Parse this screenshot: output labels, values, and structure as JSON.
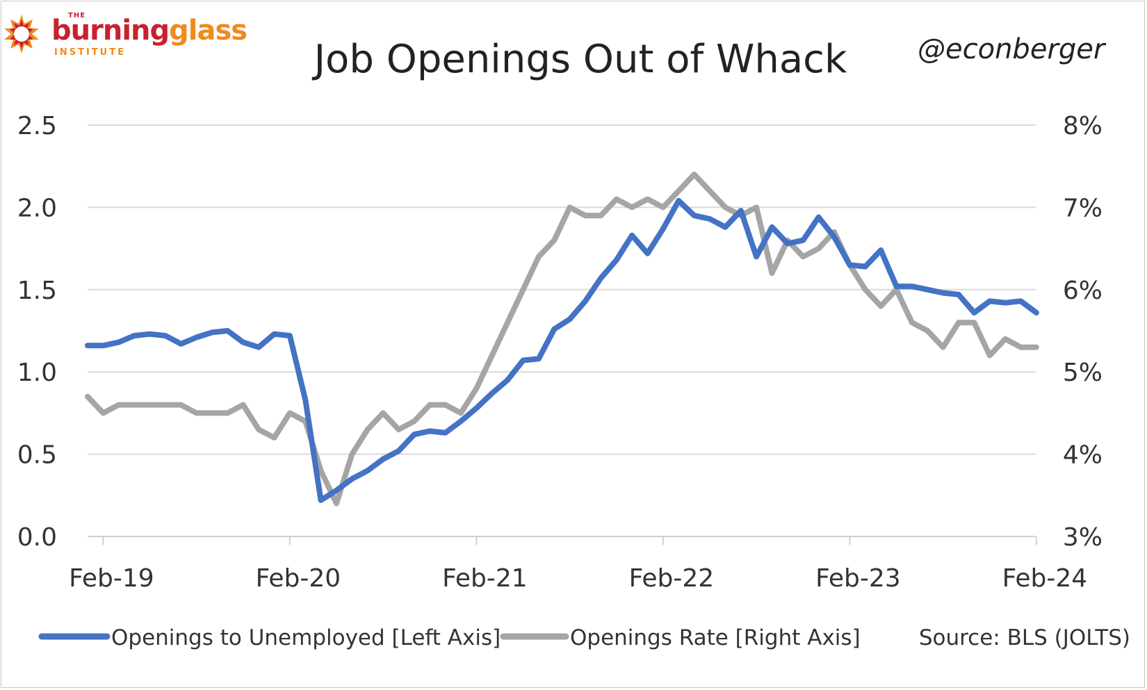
{
  "logo": {
    "the": "THE",
    "word1": "burning",
    "word2": "glass",
    "institute": "INSTITUTE",
    "colors": {
      "red": "#c8202f",
      "orange": "#f08a1c"
    }
  },
  "handle": "@econberger",
  "source": "Source: BLS (JOLTS)",
  "chart_data": {
    "type": "line",
    "title": "Job Openings Out of Whack",
    "x_tick_labels": [
      "Feb-19",
      "Feb-20",
      "Feb-21",
      "Feb-22",
      "Feb-23",
      "Feb-24"
    ],
    "x": [
      "2019-01",
      "2019-02",
      "2019-03",
      "2019-04",
      "2019-05",
      "2019-06",
      "2019-07",
      "2019-08",
      "2019-09",
      "2019-10",
      "2019-11",
      "2019-12",
      "2020-01",
      "2020-02",
      "2020-03",
      "2020-04",
      "2020-05",
      "2020-06",
      "2020-07",
      "2020-08",
      "2020-09",
      "2020-10",
      "2020-11",
      "2020-12",
      "2021-01",
      "2021-02",
      "2021-03",
      "2021-04",
      "2021-05",
      "2021-06",
      "2021-07",
      "2021-08",
      "2021-09",
      "2021-10",
      "2021-11",
      "2021-12",
      "2022-01",
      "2022-02",
      "2022-03",
      "2022-04",
      "2022-05",
      "2022-06",
      "2022-07",
      "2022-08",
      "2022-09",
      "2022-10",
      "2022-11",
      "2022-12",
      "2023-01",
      "2023-02",
      "2023-03",
      "2023-04",
      "2023-05",
      "2023-06",
      "2023-07",
      "2023-08",
      "2023-09",
      "2023-10",
      "2023-11",
      "2023-12",
      "2024-01",
      "2024-02"
    ],
    "left_axis": {
      "ylim": [
        0,
        2.5
      ],
      "ticks": [
        "0.0",
        "0.5",
        "1.0",
        "1.5",
        "2.0",
        "2.5"
      ]
    },
    "right_axis": {
      "ylim": [
        3,
        8
      ],
      "ticks": [
        "3%",
        "4%",
        "5%",
        "6%",
        "7%",
        "8%"
      ]
    },
    "series": [
      {
        "name": "Openings to Unemployed [Left Axis]",
        "axis": "left",
        "color": "#4472c4",
        "values": [
          1.16,
          1.16,
          1.18,
          1.22,
          1.23,
          1.22,
          1.17,
          1.21,
          1.24,
          1.25,
          1.18,
          1.15,
          1.23,
          1.22,
          0.83,
          0.22,
          0.28,
          0.35,
          0.4,
          0.47,
          0.52,
          0.62,
          0.64,
          0.63,
          0.7,
          0.78,
          0.87,
          0.95,
          1.07,
          1.08,
          1.26,
          1.32,
          1.43,
          1.57,
          1.68,
          1.83,
          1.72,
          1.87,
          2.04,
          1.95,
          1.93,
          1.88,
          1.98,
          1.7,
          1.88,
          1.78,
          1.8,
          1.94,
          1.82,
          1.65,
          1.64,
          1.74,
          1.52,
          1.52,
          1.5,
          1.48,
          1.47,
          1.36,
          1.43,
          1.42,
          1.43,
          1.36
        ]
      },
      {
        "name": "Openings Rate [Right Axis]",
        "axis": "right",
        "color": "#a5a5a5",
        "values": [
          4.7,
          4.5,
          4.6,
          4.6,
          4.6,
          4.6,
          4.6,
          4.5,
          4.5,
          4.5,
          4.6,
          4.3,
          4.2,
          4.5,
          4.4,
          3.8,
          3.4,
          4.0,
          4.3,
          4.5,
          4.3,
          4.4,
          4.6,
          4.6,
          4.5,
          4.8,
          5.2,
          5.6,
          6.0,
          6.4,
          6.6,
          7.0,
          6.9,
          6.9,
          7.1,
          7.0,
          7.1,
          7.0,
          7.2,
          7.4,
          7.2,
          7.0,
          6.9,
          7.0,
          6.2,
          6.6,
          6.4,
          6.5,
          6.7,
          6.3,
          6.0,
          5.8,
          6.0,
          5.6,
          5.5,
          5.3,
          5.6,
          5.6,
          5.2,
          5.4,
          5.3,
          5.3
        ]
      }
    ],
    "grid": true,
    "legend_position": "bottom"
  }
}
